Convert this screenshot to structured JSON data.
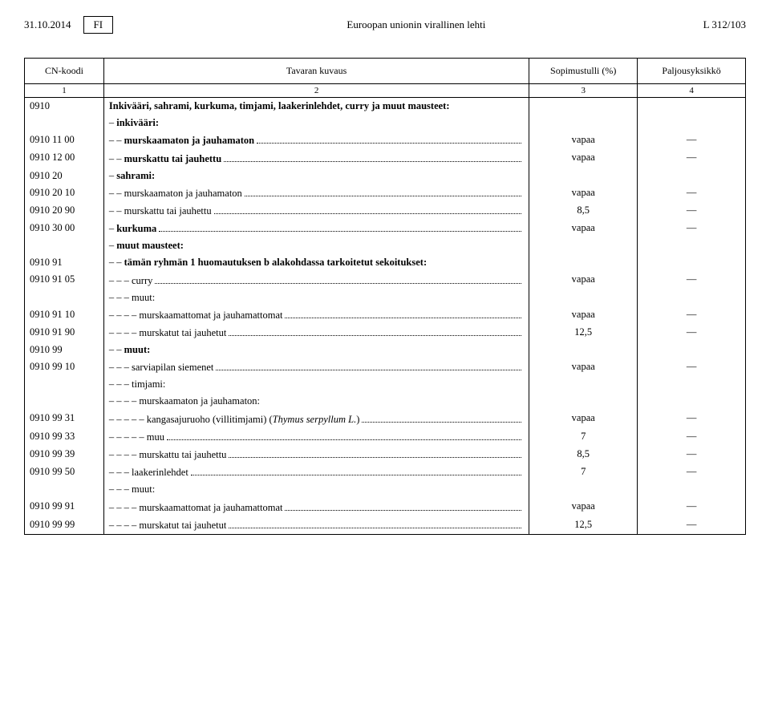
{
  "header": {
    "date": "31.10.2014",
    "lang": "FI",
    "title": "Euroopan unionin virallinen lehti",
    "page": "L 312/103"
  },
  "columns": {
    "c1": "CN-koodi",
    "c2": "Tavaran kuvaus",
    "c3": "Sopimustulli (%)",
    "c4": "Paljousyksikkö",
    "n1": "1",
    "n2": "2",
    "n3": "3",
    "n4": "4"
  },
  "rows": [
    {
      "code": "0910",
      "dash": "",
      "text": "Inkivääri, sahrami, kurkuma, timjami, laakerinlehdet, curry ja muut mausteet:",
      "bold": true,
      "val": "",
      "unit": "",
      "leader": false
    },
    {
      "code": "",
      "dash": "– ",
      "text": "inkivääri:",
      "bold": true,
      "val": "",
      "unit": "",
      "leader": false
    },
    {
      "code": "0910 11 00",
      "dash": "– – ",
      "text": "murskaamaton ja jauhamaton",
      "bold": true,
      "val": "vapaa",
      "unit": "—",
      "leader": true
    },
    {
      "code": "0910 12 00",
      "dash": "– – ",
      "text": "murskattu tai jauhettu",
      "bold": true,
      "val": "vapaa",
      "unit": "—",
      "leader": true
    },
    {
      "code": "0910 20",
      "dash": "– ",
      "text": "sahrami:",
      "bold": true,
      "val": "",
      "unit": "",
      "leader": false
    },
    {
      "code": "0910 20 10",
      "dash": "– – ",
      "text": "murskaamaton ja jauhamaton",
      "bold": false,
      "val": "vapaa",
      "unit": "—",
      "leader": true
    },
    {
      "code": "0910 20 90",
      "dash": "– – ",
      "text": "murskattu tai jauhettu",
      "bold": false,
      "val": "8,5",
      "unit": "—",
      "leader": true
    },
    {
      "code": "0910 30 00",
      "dash": "– ",
      "text": "kurkuma",
      "bold": true,
      "val": "vapaa",
      "unit": "—",
      "leader": true
    },
    {
      "code": "",
      "dash": "– ",
      "text": "muut mausteet:",
      "bold": true,
      "val": "",
      "unit": "",
      "leader": false
    },
    {
      "code": "0910 91",
      "dash": "– – ",
      "text": "tämän ryhmän 1 huomautuksen b alakohdassa tarkoitetut sekoitukset:",
      "bold": true,
      "val": "",
      "unit": "",
      "leader": false
    },
    {
      "code": "0910 91 05",
      "dash": "– – – ",
      "text": "curry",
      "bold": false,
      "val": "vapaa",
      "unit": "—",
      "leader": true
    },
    {
      "code": "",
      "dash": "– – – ",
      "text": "muut:",
      "bold": false,
      "val": "",
      "unit": "",
      "leader": false
    },
    {
      "code": "0910 91 10",
      "dash": "– – – – ",
      "text": "murskaamattomat ja jauhamattomat",
      "bold": false,
      "val": "vapaa",
      "unit": "—",
      "leader": true
    },
    {
      "code": "0910 91 90",
      "dash": "– – – – ",
      "text": "murskatut tai jauhetut",
      "bold": false,
      "val": "12,5",
      "unit": "—",
      "leader": true
    },
    {
      "code": "0910 99",
      "dash": "– – ",
      "text": "muut:",
      "bold": true,
      "val": "",
      "unit": "",
      "leader": false
    },
    {
      "code": "0910 99 10",
      "dash": "– – – ",
      "text": "sarviapilan siemenet",
      "bold": false,
      "val": "vapaa",
      "unit": "—",
      "leader": true
    },
    {
      "code": "",
      "dash": "– – – ",
      "text": "timjami:",
      "bold": false,
      "val": "",
      "unit": "",
      "leader": false
    },
    {
      "code": "",
      "dash": "– – – – ",
      "text": "murskaamaton ja jauhamaton:",
      "bold": false,
      "val": "",
      "unit": "",
      "leader": false
    },
    {
      "code": "0910 99 31",
      "dash": "– – – – – ",
      "text": "kangasajuruoho (villitimjami) (Thymus serpyllum L.)",
      "bold": false,
      "italic": true,
      "val": "vapaa",
      "unit": "—",
      "leader": true
    },
    {
      "code": "0910 99 33",
      "dash": "– – – – – ",
      "text": "muu",
      "bold": false,
      "val": "7",
      "unit": "—",
      "leader": true
    },
    {
      "code": "0910 99 39",
      "dash": "– – – – ",
      "text": "murskattu tai jauhettu",
      "bold": false,
      "val": "8,5",
      "unit": "—",
      "leader": true
    },
    {
      "code": "0910 99 50",
      "dash": "– – – ",
      "text": "laakerinlehdet",
      "bold": false,
      "val": "7",
      "unit": "—",
      "leader": true
    },
    {
      "code": "",
      "dash": "– – – ",
      "text": "muut:",
      "bold": false,
      "val": "",
      "unit": "",
      "leader": false
    },
    {
      "code": "0910 99 91",
      "dash": "– – – – ",
      "text": "murskaamattomat ja jauhamattomat",
      "bold": false,
      "val": "vapaa",
      "unit": "—",
      "leader": true
    },
    {
      "code": "0910 99 99",
      "dash": "– – – – ",
      "text": "murskatut tai jauhetut",
      "bold": false,
      "val": "12,5",
      "unit": "—",
      "leader": true
    }
  ]
}
